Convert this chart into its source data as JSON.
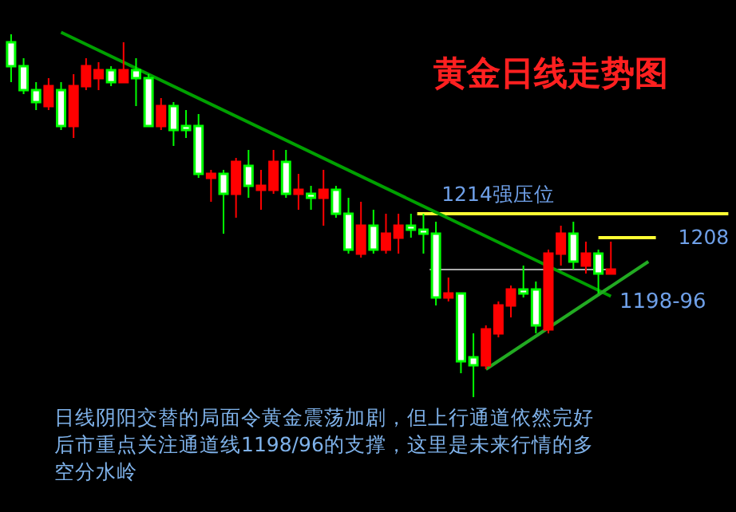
{
  "chart_data": {
    "type": "candlestick",
    "title": "黄金日线走势图",
    "tick_labels": false,
    "ylim": [
      1139.2,
      1267.6
    ],
    "categories": [
      null,
      null,
      null,
      null,
      null,
      null,
      null,
      null,
      null,
      null,
      null,
      null,
      null,
      null,
      null,
      null,
      null,
      null,
      null,
      null,
      null,
      null,
      null,
      null,
      null,
      null,
      null,
      null,
      null,
      null,
      null,
      null,
      null,
      null,
      null,
      null,
      null,
      null,
      null,
      null,
      null,
      null,
      null,
      null,
      null,
      null,
      null,
      null,
      null,
      null,
      null,
      null
    ],
    "ohlc": [
      [
        1251,
        1259,
        1247,
        1257
      ],
      [
        1245,
        1253,
        1244,
        1251
      ],
      [
        1242,
        1247,
        1240,
        1245
      ],
      [
        1246,
        1248,
        1240,
        1241
      ],
      [
        1236,
        1247,
        1235,
        1245
      ],
      [
        1246,
        1249,
        1233,
        1236
      ],
      [
        1251,
        1253,
        1245,
        1246
      ],
      [
        1250,
        1252,
        1245,
        1248
      ],
      [
        1247,
        1251,
        1246,
        1250
      ],
      [
        1250,
        1257,
        1247,
        1247
      ],
      [
        1248,
        1253,
        1241,
        1250
      ],
      [
        1236,
        1249,
        1236,
        1248
      ],
      [
        1241,
        1243,
        1235,
        1236
      ],
      [
        1235,
        1242,
        1231,
        1241
      ],
      [
        1235,
        1240,
        1233,
        1236
      ],
      [
        1224,
        1239,
        1223,
        1236
      ],
      [
        1224,
        1225,
        1217,
        1223
      ],
      [
        1219,
        1225,
        1209,
        1224
      ],
      [
        1227,
        1228,
        1213,
        1219
      ],
      [
        1221,
        1230,
        1218,
        1226
      ],
      [
        1221,
        1225,
        1215,
        1220
      ],
      [
        1227,
        1230,
        1219,
        1220
      ],
      [
        1219,
        1230,
        1218,
        1227
      ],
      [
        1220,
        1224,
        1215,
        1219
      ],
      [
        1218,
        1221,
        1215,
        1219
      ],
      [
        1220,
        1225,
        1211,
        1218
      ],
      [
        1214,
        1221,
        1213,
        1220
      ],
      [
        1205,
        1218,
        1204,
        1214
      ],
      [
        1211,
        1217,
        1203,
        1204
      ],
      [
        1205,
        1215,
        1204,
        1211
      ],
      [
        1209,
        1214,
        1204,
        1205
      ],
      [
        1211,
        1214,
        1204,
        1208
      ],
      [
        1210,
        1214,
        1208,
        1211
      ],
      [
        1209,
        1214,
        1204,
        1210
      ],
      [
        1193,
        1212,
        1191,
        1209
      ],
      [
        1194,
        1198,
        1192,
        1193
      ],
      [
        1177,
        1194,
        1174,
        1194
      ],
      [
        1176,
        1184,
        1168,
        1178
      ],
      [
        1185,
        1186,
        1175,
        1176
      ],
      [
        1191,
        1192,
        1183,
        1184
      ],
      [
        1195,
        1196,
        1188,
        1191
      ],
      [
        1194,
        1201,
        1193,
        1195
      ],
      [
        1186,
        1197,
        1184,
        1195
      ],
      [
        1204,
        1205,
        1184,
        1185
      ],
      [
        1209,
        1211,
        1201,
        1204
      ],
      [
        1202,
        1212,
        1200,
        1209
      ],
      [
        1204,
        1207,
        1199,
        1201
      ],
      [
        1199,
        1205,
        1194,
        1204
      ],
      [
        1200,
        1207,
        1199,
        1199
      ],
      null,
      null,
      null
    ],
    "series": [
      {
        "type": "line",
        "color": "#00a000",
        "values": [
          null,
          null,
          null,
          null,
          1259.5,
          null,
          null,
          null,
          null,
          null,
          null,
          null,
          null,
          null,
          null,
          null,
          null,
          null,
          null,
          null,
          null,
          null,
          null,
          null,
          null,
          null,
          null,
          null,
          null,
          null,
          null,
          null,
          null,
          null,
          null,
          null,
          null,
          null,
          null,
          null,
          null,
          null,
          null,
          null,
          null,
          null,
          null,
          null,
          1193.3,
          null,
          null,
          null
        ]
      },
      {
        "type": "line",
        "color": "#22aa22",
        "values": [
          null,
          null,
          null,
          null,
          null,
          null,
          null,
          null,
          null,
          null,
          null,
          null,
          null,
          null,
          null,
          null,
          null,
          null,
          null,
          null,
          null,
          null,
          null,
          null,
          null,
          null,
          null,
          null,
          null,
          null,
          null,
          null,
          null,
          null,
          null,
          null,
          null,
          null,
          1175,
          null,
          null,
          null,
          null,
          null,
          null,
          null,
          null,
          null,
          null,
          null,
          null,
          1202
        ]
      }
    ],
    "ref_lines": [
      {
        "axis": "y",
        "value": 1214,
        "label": "1214强压位",
        "color": "#ffff33"
      },
      {
        "axis": "y",
        "value": 1208,
        "label": "1208",
        "color": "#ffff33"
      },
      {
        "axis": "y",
        "value": 1200,
        "color": "#aaaaaa"
      }
    ],
    "annotations": [
      "1198-96",
      "日线阴阳交替的局面令黄金震荡加剧，但上行通道依然完好后市重点关注通道线1198/96的支撑，这里是未来行情的多空分水岭"
    ]
  }
}
